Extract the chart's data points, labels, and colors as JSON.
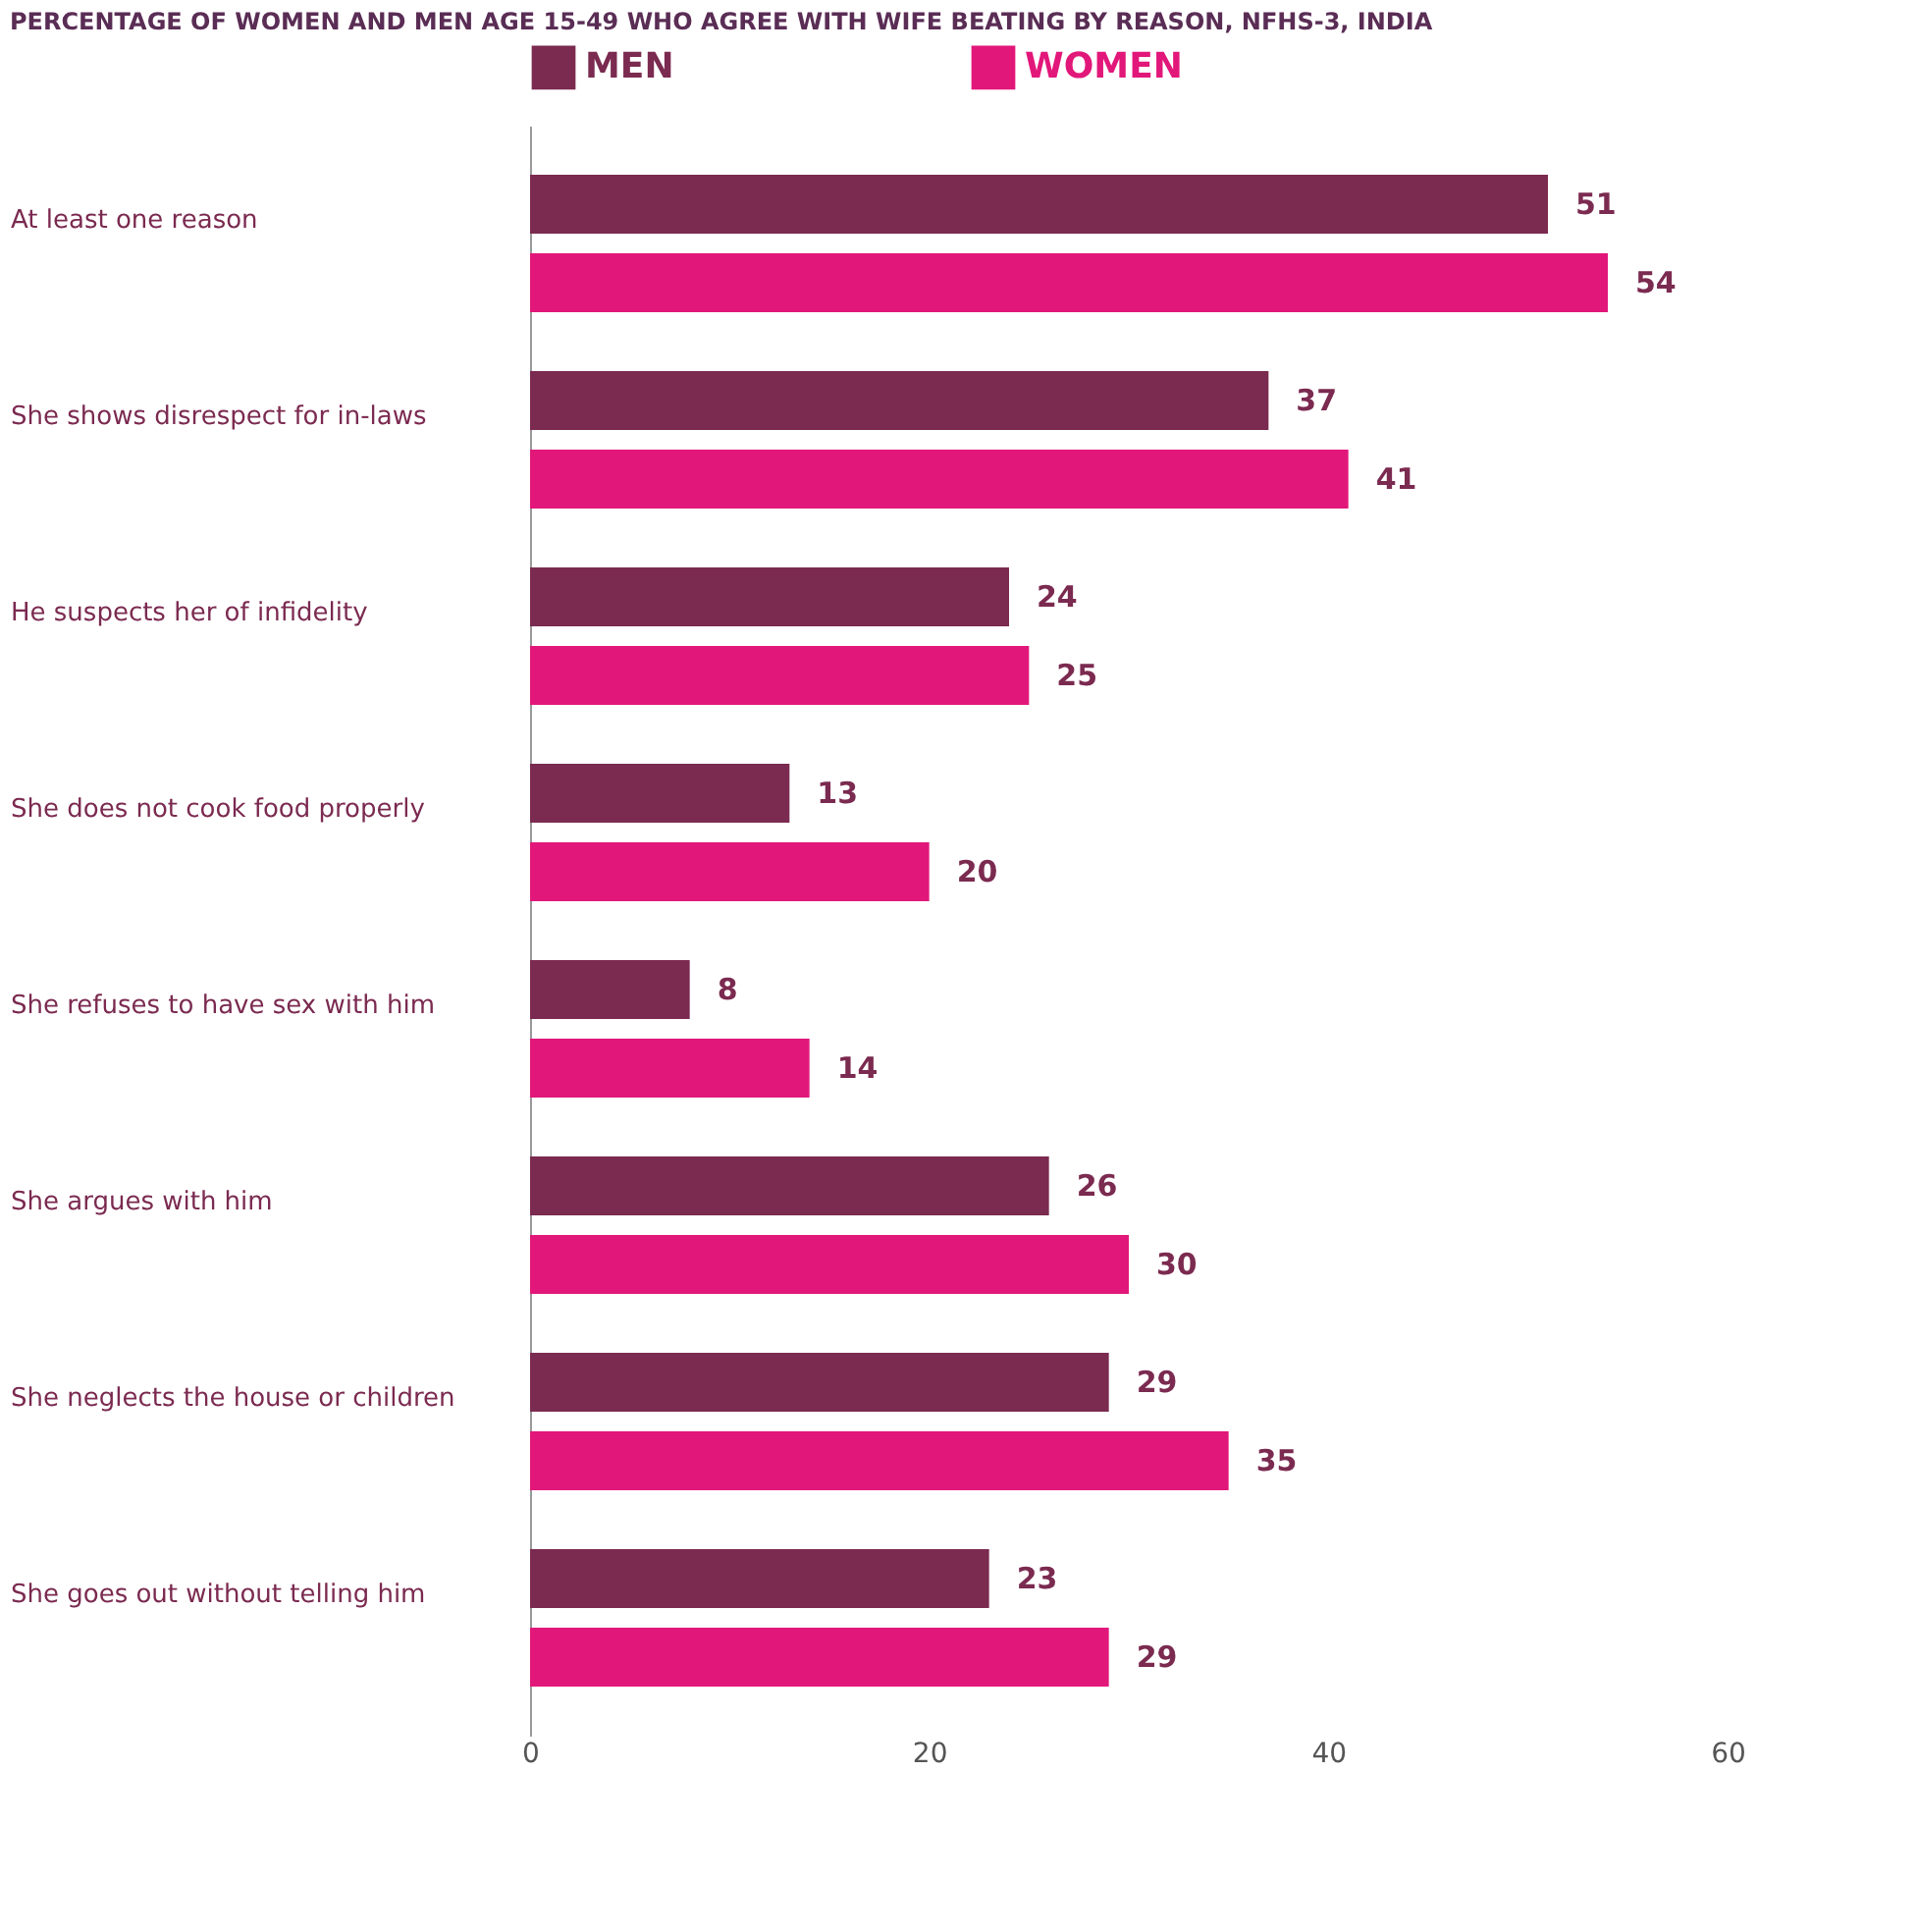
{
  "chart_data": {
    "type": "bar",
    "orientation": "horizontal",
    "title": "PERCENTAGE OF WOMEN AND MEN AGE 15-49 WHO AGREE WITH WIFE BEATING BY REASON, NFHS-3, INDIA",
    "categories": [
      "At least one reason",
      "She shows disrespect for in-laws",
      "He suspects her of infidelity",
      "She does not cook food properly",
      "She refuses to have sex with him",
      "She argues with him",
      "She neglects the house or children",
      "She goes out without telling him"
    ],
    "series": [
      {
        "name": "MEN",
        "color": "#7b2a50",
        "values": [
          51,
          37,
          24,
          13,
          8,
          26,
          29,
          23
        ]
      },
      {
        "name": "WOMEN",
        "color": "#e2177a",
        "values": [
          54,
          41,
          25,
          20,
          14,
          30,
          35,
          29
        ]
      }
    ],
    "xlim": [
      0,
      60
    ],
    "xticks": [
      0,
      20,
      40,
      60
    ],
    "grid": false,
    "legend": "top",
    "data_labels": true
  }
}
